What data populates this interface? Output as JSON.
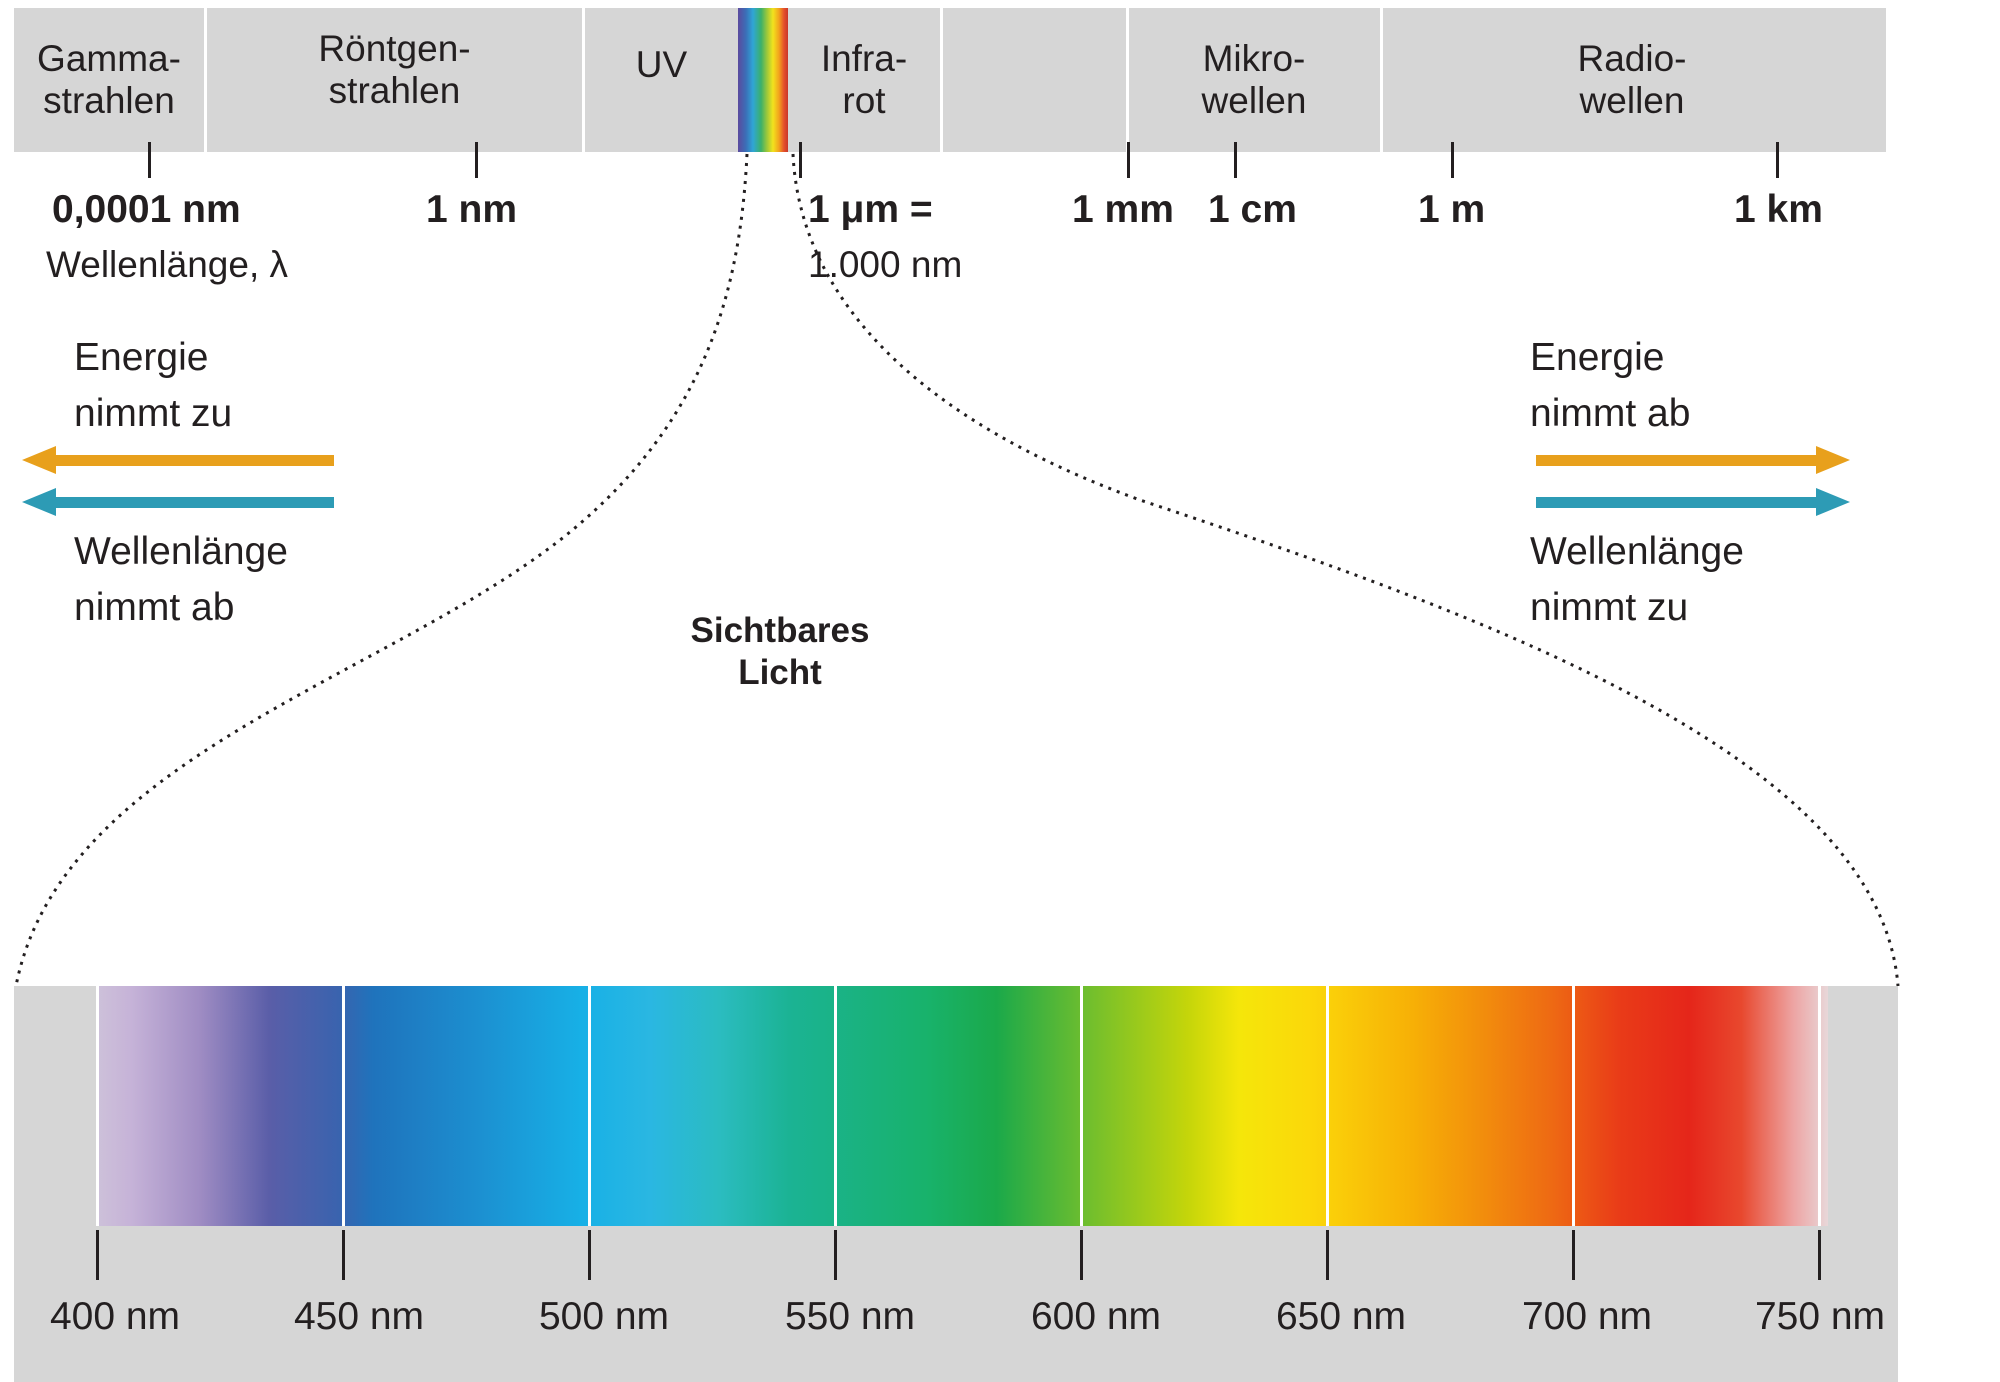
{
  "em_bands": [
    {
      "id": "gamma",
      "label": "Gamma-\nstrahlen"
    },
    {
      "id": "xray",
      "label": "Röntgen-\nstrahlen"
    },
    {
      "id": "uv",
      "label": "UV"
    },
    {
      "id": "infrared",
      "label": "Infra-\nrot"
    },
    {
      "id": "microwave",
      "label": "Mikro-\nwellen"
    },
    {
      "id": "radio",
      "label": "Radio-\nwellen"
    }
  ],
  "em_scale": {
    "labels": [
      "0,0001 nm",
      "1 nm",
      "1 μm =",
      "1 mm",
      "1 cm",
      "1 m",
      "1 km"
    ],
    "micrometer_equiv": "1.000 nm",
    "axis_label": "Wellenlänge, λ"
  },
  "left_annotation": {
    "energy": [
      "Energie",
      "nimmt zu"
    ],
    "wavelength": [
      "Wellenlänge",
      "nimmt ab"
    ]
  },
  "right_annotation": {
    "energy": [
      "Energie",
      "nimmt ab"
    ],
    "wavelength": [
      "Wellenlänge",
      "nimmt zu"
    ]
  },
  "visible_light": {
    "title": [
      "Sichtbares",
      "Licht"
    ],
    "tick_labels": [
      "400 nm",
      "450 nm",
      "500 nm",
      "550 nm",
      "600 nm",
      "650 nm",
      "700 nm",
      "750 nm"
    ]
  },
  "colors": {
    "energy_arrow": "#e8a01c",
    "wavelength_arrow": "#2d9bb5",
    "band_gray": "#d6d6d6",
    "text": "#231f20"
  }
}
